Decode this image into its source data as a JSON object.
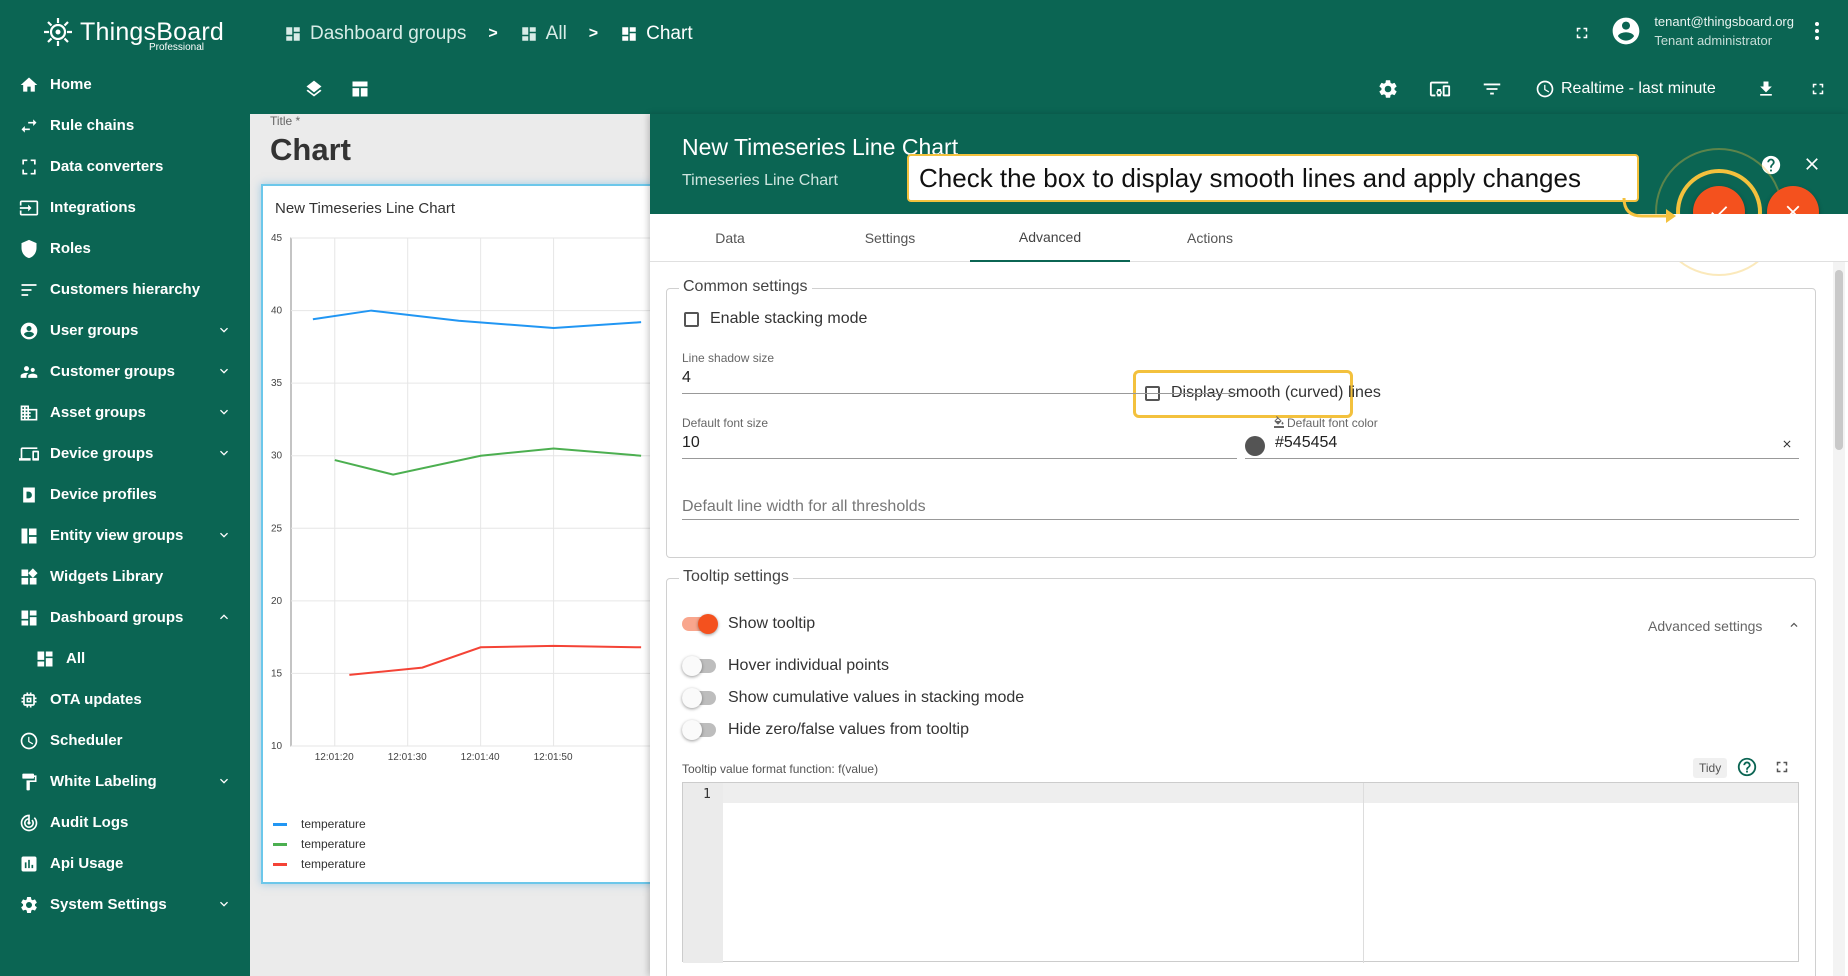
{
  "app": {
    "logo_text": "ThingsBoard",
    "logo_sub": "Professional"
  },
  "sidebar": {
    "items": [
      {
        "label": "Home",
        "icon": "home-icon",
        "expandable": false
      },
      {
        "label": "Rule chains",
        "icon": "rule-chains-icon",
        "expandable": false
      },
      {
        "label": "Data converters",
        "icon": "converter-icon",
        "expandable": false
      },
      {
        "label": "Integrations",
        "icon": "integration-icon",
        "expandable": false
      },
      {
        "label": "Roles",
        "icon": "shield-icon",
        "expandable": false
      },
      {
        "label": "Customers hierarchy",
        "icon": "hierarchy-icon",
        "expandable": false
      },
      {
        "label": "User groups",
        "icon": "account-circle-icon",
        "expandable": true
      },
      {
        "label": "Customer groups",
        "icon": "supervisor-icon",
        "expandable": true
      },
      {
        "label": "Asset groups",
        "icon": "domain-icon",
        "expandable": true
      },
      {
        "label": "Device groups",
        "icon": "devices-icon",
        "expandable": true
      },
      {
        "label": "Device profiles",
        "icon": "device-profile-icon",
        "expandable": false
      },
      {
        "label": "Entity view groups",
        "icon": "view-quilt-icon",
        "expandable": true
      },
      {
        "label": "Widgets Library",
        "icon": "widgets-icon",
        "expandable": false
      },
      {
        "label": "Dashboard groups",
        "icon": "dashboard-icon",
        "expandable": true,
        "expanded": true
      },
      {
        "label": "All",
        "icon": "dashboard-icon",
        "expandable": false,
        "sub": true
      },
      {
        "label": "OTA updates",
        "icon": "memory-icon",
        "expandable": false
      },
      {
        "label": "Scheduler",
        "icon": "clock-icon",
        "expandable": false
      },
      {
        "label": "White Labeling",
        "icon": "format-paint-icon",
        "expandable": true
      },
      {
        "label": "Audit Logs",
        "icon": "track-changes-icon",
        "expandable": false
      },
      {
        "label": "Api Usage",
        "icon": "insert-chart-icon",
        "expandable": false
      },
      {
        "label": "System Settings",
        "icon": "settings-icon",
        "expandable": true
      }
    ]
  },
  "header": {
    "breadcrumbs": [
      {
        "label": "Dashboard groups"
      },
      {
        "label": "All"
      },
      {
        "label": "Chart"
      }
    ],
    "separator": ">",
    "user_email": "tenant@thingsboard.org",
    "user_role": "Tenant administrator",
    "timewindow": "Realtime - last minute"
  },
  "dashboard": {
    "title_label": "Title *",
    "title": "Chart",
    "widget_title": "New Timeseries Line Chart"
  },
  "chart_data": {
    "type": "line",
    "title": "New Timeseries Line Chart",
    "x": [
      "12:01:15",
      "12:01:23",
      "12:01:33",
      "12:01:43",
      "12:01:53",
      "12:02:00"
    ],
    "x_ticks": [
      "12:01:20",
      "12:01:30",
      "12:01:40",
      "12:01:50"
    ],
    "ylim": [
      10,
      45
    ],
    "y_ticks": [
      "10",
      "15",
      "20",
      "25",
      "30",
      "35",
      "40",
      "45"
    ],
    "series": [
      {
        "name": "temperature",
        "color": "#2196f3",
        "x": [
          "12:01:17",
          "12:01:25",
          "12:01:37",
          "12:01:50",
          "12:02:02"
        ],
        "values": [
          39.4,
          40.0,
          39.3,
          38.8,
          39.2
        ]
      },
      {
        "name": "temperature",
        "color": "#4caf50",
        "x": [
          "12:01:20",
          "12:01:28",
          "12:01:40",
          "12:01:50",
          "12:02:02"
        ],
        "values": [
          29.7,
          28.7,
          30.0,
          30.5,
          30.0
        ]
      },
      {
        "name": "temperature",
        "color": "#f44336",
        "x": [
          "12:01:22",
          "12:01:32",
          "12:01:40",
          "12:01:50",
          "12:02:02"
        ],
        "values": [
          14.9,
          15.4,
          16.8,
          16.9,
          16.8
        ]
      }
    ],
    "legend": [
      "temperature",
      "temperature",
      "temperature"
    ],
    "legend_position": "bottom",
    "grid": true
  },
  "editor": {
    "title": "New Timeseries Line Chart",
    "subtitle": "Timeseries Line Chart",
    "tabs": [
      "Data",
      "Settings",
      "Advanced",
      "Actions"
    ],
    "active_tab": "Advanced",
    "callout": "Check the box to display smooth lines and apply changes",
    "common": {
      "legend": "Common settings",
      "stacking_label": "Enable stacking mode",
      "smooth_label": "Display smooth (curved) lines",
      "shadow_label": "Line shadow size",
      "shadow_value": "4",
      "font_size_label": "Default font size",
      "font_size_value": "10",
      "font_color_label": "Default font color",
      "font_color_value": "#545454",
      "line_width_placeholder": "Default line width for all thresholds"
    },
    "tooltip": {
      "legend": "Tooltip settings",
      "show_tooltip": "Show tooltip",
      "advanced": "Advanced settings",
      "hover": "Hover individual points",
      "cumulative": "Show cumulative values in stacking mode",
      "hide_zero": "Hide zero/false values from tooltip",
      "format_label": "Tooltip value format function: f(value)",
      "tidy": "Tidy",
      "line_number": "1"
    }
  },
  "colors": {
    "primary": "#0b6553",
    "accent": "#f4511e",
    "highlight": "#f3c13d"
  }
}
